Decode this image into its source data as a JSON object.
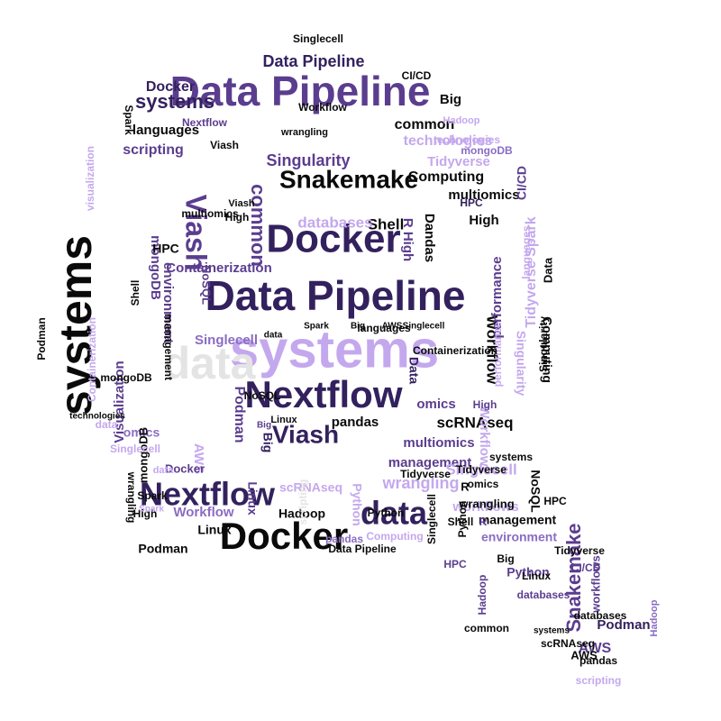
{
  "palette": {
    "black": "#0a0a0a",
    "dark": "#33215e",
    "purple": "#5b3d8f",
    "violet": "#8a6cc4",
    "lavender": "#c4a8ee",
    "pale": "#e4e4e4"
  },
  "words": [
    {
      "text": "Data Pipeline",
      "color": "purple"
    },
    {
      "text": "Data Pipeline",
      "color": "dark"
    },
    {
      "text": "Docker",
      "color": "dark"
    },
    {
      "text": "Docker",
      "color": "black"
    },
    {
      "text": "systems",
      "color": "lavender"
    },
    {
      "text": "systems",
      "color": "black"
    },
    {
      "text": "Nextflow",
      "color": "dark"
    },
    {
      "text": "Nextflow",
      "color": "dark"
    },
    {
      "text": "Snakemake",
      "color": "black"
    },
    {
      "text": "Snakemake",
      "color": "purple"
    },
    {
      "text": "data",
      "color": "pale"
    },
    {
      "text": "data",
      "color": "dark"
    },
    {
      "text": "Viash",
      "color": "purple"
    },
    {
      "text": "Viash",
      "color": "dark"
    },
    {
      "text": "systems",
      "color": "dark"
    },
    {
      "text": "Data Pipeline",
      "color": "dark"
    },
    {
      "text": "Docker",
      "color": "dark"
    },
    {
      "text": "languages",
      "color": "black"
    },
    {
      "text": "scripting",
      "color": "purple"
    },
    {
      "text": "Containerization",
      "color": "purple"
    },
    {
      "text": "environment",
      "color": "purple"
    },
    {
      "text": "mongoDB",
      "color": "purple"
    },
    {
      "text": "Singlecell",
      "color": "violet"
    },
    {
      "text": "Singularity",
      "color": "purple"
    },
    {
      "text": "technologies",
      "color": "lavender"
    },
    {
      "text": "Tidyverse",
      "color": "lavender"
    },
    {
      "text": "Computing",
      "color": "black"
    },
    {
      "text": "multiomics",
      "color": "black"
    },
    {
      "text": "multiomics",
      "color": "purple"
    },
    {
      "text": "High",
      "color": "black"
    },
    {
      "text": "common",
      "color": "black"
    },
    {
      "text": "common",
      "color": "purple"
    },
    {
      "text": "Big",
      "color": "black"
    },
    {
      "text": "Hadoop",
      "color": "lavender"
    },
    {
      "text": "Spark",
      "color": "black"
    },
    {
      "text": "Shell",
      "color": "black"
    },
    {
      "text": "databases",
      "color": "lavender"
    },
    {
      "text": "Dandas",
      "color": "black"
    },
    {
      "text": "R High",
      "color": "purple"
    },
    {
      "text": "HPC",
      "color": "black"
    },
    {
      "text": "NoSQL",
      "color": "purple"
    },
    {
      "text": "omics",
      "color": "purple"
    },
    {
      "text": "Spark",
      "color": "black"
    },
    {
      "text": "Big",
      "color": "black"
    },
    {
      "text": "AWS",
      "color": "black"
    },
    {
      "text": "Singlecell",
      "color": "black"
    },
    {
      "text": "management",
      "color": "purple"
    },
    {
      "text": "management",
      "color": "black"
    },
    {
      "text": "wrangling",
      "color": "lavender"
    },
    {
      "text": "workflows",
      "color": "lavender"
    },
    {
      "text": "Singlecell",
      "color": "lavender"
    },
    {
      "text": "NoSQL",
      "color": "black"
    },
    {
      "text": "HPC",
      "color": "black"
    },
    {
      "text": "scRNAseq",
      "color": "black"
    },
    {
      "text": "scRNAseq",
      "color": "lavender"
    },
    {
      "text": "Hadoop",
      "color": "black"
    },
    {
      "text": "Python",
      "color": "lavender"
    },
    {
      "text": "Python",
      "color": "black"
    },
    {
      "text": "pandas",
      "color": "violet"
    },
    {
      "text": "Linux",
      "color": "purple"
    },
    {
      "text": "Linux",
      "color": "black"
    },
    {
      "text": "Workflow",
      "color": "violet"
    },
    {
      "text": "Workflow",
      "color": "black"
    },
    {
      "text": "Podman",
      "color": "black"
    },
    {
      "text": "Podman",
      "color": "purple"
    },
    {
      "text": "Podman",
      "color": "dark"
    },
    {
      "text": "environment",
      "color": "violet"
    },
    {
      "text": "AWS",
      "color": "lavender"
    },
    {
      "text": "AWS",
      "color": "purple"
    },
    {
      "text": "omics",
      "color": "violet"
    },
    {
      "text": "Visualization",
      "color": "purple"
    },
    {
      "text": "visualization",
      "color": "lavender"
    },
    {
      "text": "performance",
      "color": "purple"
    },
    {
      "text": "performance",
      "color": "lavender"
    },
    {
      "text": "Containerization",
      "color": "lavender"
    },
    {
      "text": "Tidyverse",
      "color": "black"
    },
    {
      "text": "Tidyverse Spark",
      "color": "lavender"
    },
    {
      "text": "languages",
      "color": "lavender"
    },
    {
      "text": "Data",
      "color": "black"
    },
    {
      "text": "Data",
      "color": "dark"
    },
    {
      "text": "CI/CD",
      "color": "purple"
    },
    {
      "text": "CI/CD",
      "color": "black"
    },
    {
      "text": "Workflow",
      "color": "black"
    },
    {
      "text": "Big",
      "color": "dark"
    },
    {
      "text": "technologies",
      "color": "lavender"
    },
    {
      "text": "Python",
      "color": "purple"
    },
    {
      "text": "databases",
      "color": "purple"
    },
    {
      "text": "scripting",
      "color": "pale"
    },
    {
      "text": "wrangling",
      "color": "black"
    },
    {
      "text": "Singlecell",
      "color": "black"
    },
    {
      "text": "mongoDB",
      "color": "black"
    },
    {
      "text": "Shell",
      "color": "black"
    },
    {
      "text": "workflows",
      "color": "purple"
    },
    {
      "text": "Singularity",
      "color": "lavender"
    },
    {
      "text": "Singularity",
      "color": "black"
    },
    {
      "text": "Computing",
      "color": "black"
    },
    {
      "text": "Data Pipeline",
      "color": "black"
    },
    {
      "text": "pandas",
      "color": "black"
    },
    {
      "text": "HPC",
      "color": "dark"
    },
    {
      "text": "High",
      "color": "black"
    },
    {
      "text": "Linux",
      "color": "black"
    },
    {
      "text": "Viash",
      "color": "black"
    },
    {
      "text": "technologies",
      "color": "black"
    },
    {
      "text": "systems",
      "color": "black"
    },
    {
      "text": "Big",
      "color": "purple"
    },
    {
      "text": "AWS",
      "color": "black"
    },
    {
      "text": "Podman",
      "color": "black"
    },
    {
      "text": "NoSQL",
      "color": "black"
    },
    {
      "text": "Spark",
      "color": "lavender"
    },
    {
      "text": "data",
      "color": "black"
    },
    {
      "text": "High",
      "color": "black"
    },
    {
      "text": "Viash",
      "color": "black"
    },
    {
      "text": "Docker",
      "color": "purple"
    },
    {
      "text": "Singlecell",
      "color": "black"
    },
    {
      "text": "wrangling",
      "color": "black"
    },
    {
      "text": "Hadoop",
      "color": "violet"
    },
    {
      "text": "Workflow",
      "color": "lavender"
    },
    {
      "text": "common",
      "color": "black"
    },
    {
      "text": "multiomics",
      "color": "black"
    },
    {
      "text": "Nextflow",
      "color": "purple"
    },
    {
      "text": "management",
      "color": "black"
    },
    {
      "text": "Containerization",
      "color": "black"
    },
    {
      "text": "languages",
      "color": "black"
    },
    {
      "text": "mongoDB",
      "color": "black"
    },
    {
      "text": "data",
      "color": "lavender"
    },
    {
      "text": "data",
      "color": "lavender"
    },
    {
      "text": "omics",
      "color": "black"
    },
    {
      "text": "R",
      "color": "purple"
    },
    {
      "text": "R",
      "color": "black"
    },
    {
      "text": "Shell",
      "color": "black"
    },
    {
      "text": "Singlecell",
      "color": "lavender"
    },
    {
      "text": "Tidyverse",
      "color": "black"
    },
    {
      "text": "Computing",
      "color": "lavender"
    },
    {
      "text": "Spark",
      "color": "black"
    },
    {
      "text": "scRNAseq",
      "color": "black"
    },
    {
      "text": "HPC",
      "color": "purple"
    },
    {
      "text": "pandas",
      "color": "black"
    },
    {
      "text": "mongoDB",
      "color": "violet"
    },
    {
      "text": "wrangling",
      "color": "black"
    },
    {
      "text": "Linux",
      "color": "black"
    },
    {
      "text": "High",
      "color": "purple"
    },
    {
      "text": "systems",
      "color": "black"
    },
    {
      "text": "CI/CD",
      "color": "purple"
    },
    {
      "text": "Big",
      "color": "black"
    },
    {
      "text": "Tidyverse",
      "color": "black"
    },
    {
      "text": "Python",
      "color": "black"
    },
    {
      "text": "databases",
      "color": "black"
    },
    {
      "text": "Hadoop",
      "color": "purple"
    },
    {
      "text": "scripting",
      "color": "lavender"
    },
    {
      "text": "omics",
      "color": "black"
    },
    {
      "text": "Snakemake",
      "color": "black"
    },
    {
      "text": "NoSQL",
      "color": "purple"
    },
    {
      "text": "management",
      "color": "black"
    },
    {
      "text": "Viash",
      "color": "black"
    },
    {
      "text": "multiomics",
      "color": "purple"
    },
    {
      "text": "Nextflow",
      "color": "black"
    },
    {
      "text": "wrangling",
      "color": "purple"
    },
    {
      "text": "Podman",
      "color": "purple"
    },
    {
      "text": "Spark",
      "color": "black"
    },
    {
      "text": "Shell",
      "color": "purple"
    }
  ]
}
